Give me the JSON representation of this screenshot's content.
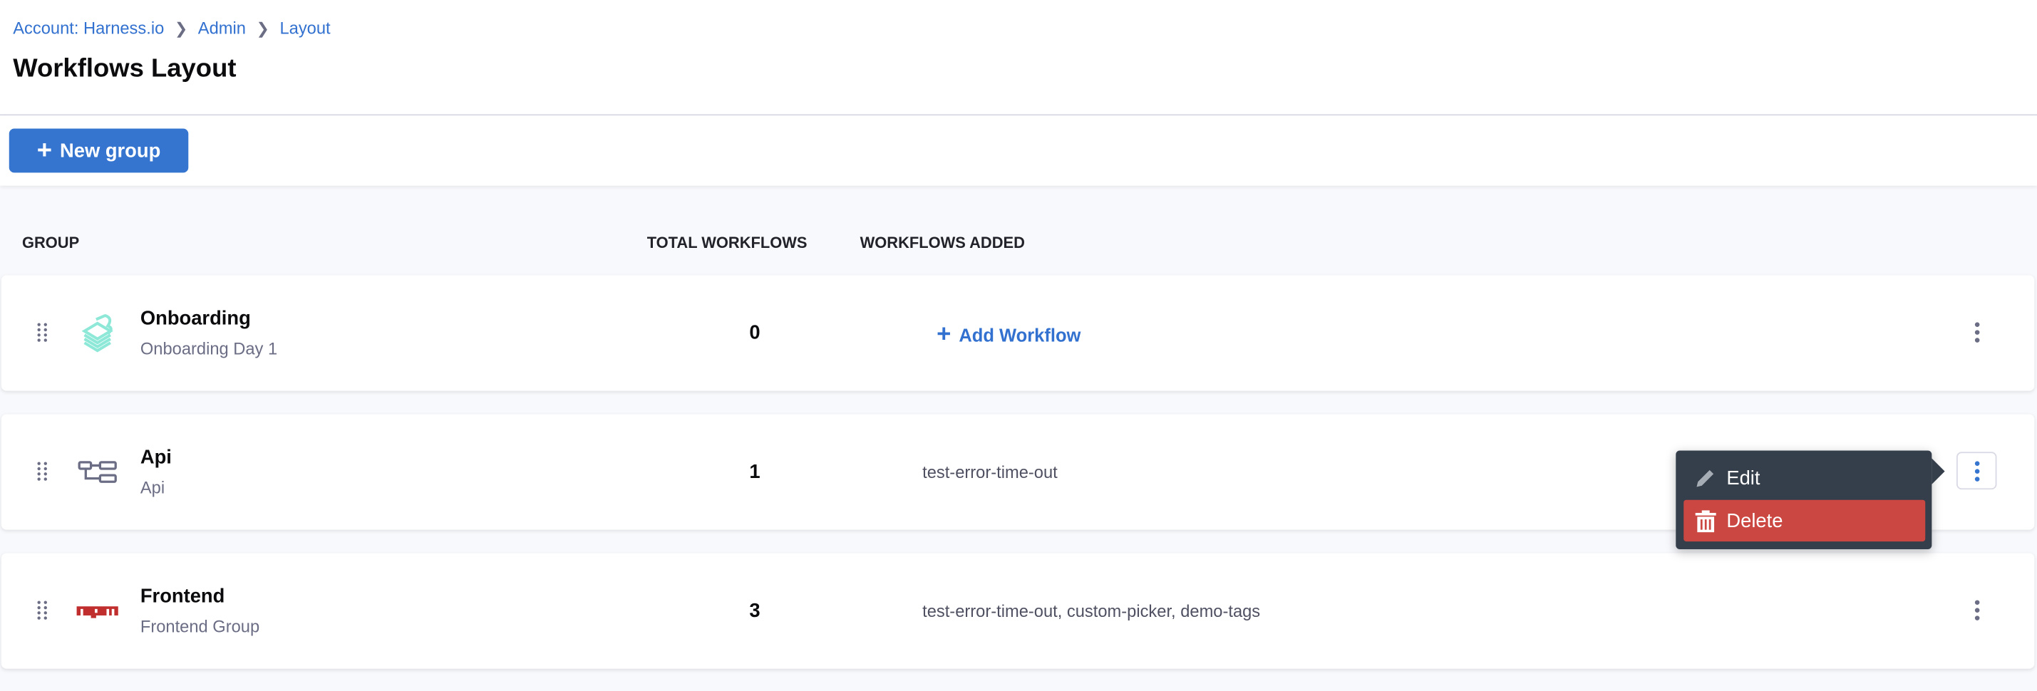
{
  "breadcrumb": [
    "Account: Harness.io",
    "Admin",
    "Layout"
  ],
  "page_title": "Workflows Layout",
  "toolbar": {
    "new_group_label": "New group"
  },
  "columns": {
    "group": "GROUP",
    "total": "TOTAL WORKFLOWS",
    "added": "WORKFLOWS ADDED"
  },
  "rows": [
    {
      "name": "Onboarding",
      "subtitle": "Onboarding Day 1",
      "count": "0",
      "workflows": "",
      "add_label": "Add Workflow",
      "icon": "layers-icon"
    },
    {
      "name": "Api",
      "subtitle": "Api",
      "count": "1",
      "workflows": "test-error-time-out",
      "icon": "flow-icon"
    },
    {
      "name": "Frontend",
      "subtitle": "Frontend Group",
      "count": "3",
      "workflows": "test-error-time-out, custom-picker, demo-tags",
      "icon": "npm-icon",
      "icon_text": "npm"
    }
  ],
  "menu": {
    "edit": "Edit",
    "delete": "Delete"
  },
  "colors": {
    "accent": "#3575d0",
    "danger": "#cb4741",
    "menu_bg": "#343f4b"
  }
}
